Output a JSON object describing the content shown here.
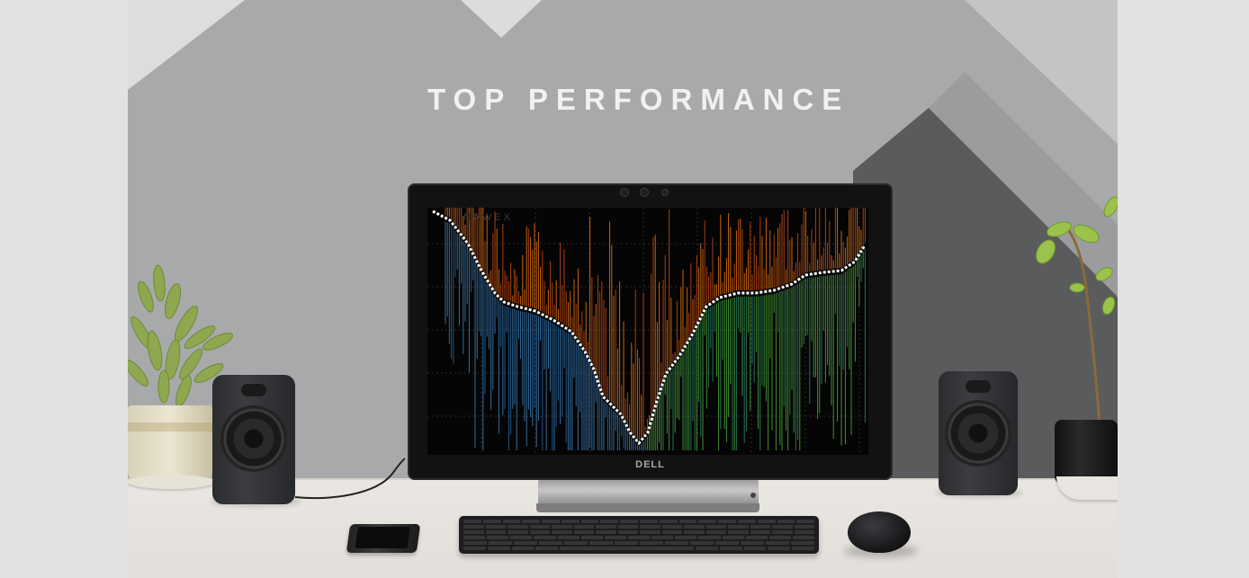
{
  "hero": {
    "headline": "TOP PERFORMANCE"
  },
  "monitor": {
    "brand_logo": "DELL",
    "screen_watermark": "NAWEX"
  },
  "icons": [
    "speaker-left-icon",
    "speaker-right-icon",
    "plant-icon",
    "keyboard-icon",
    "mouse-icon",
    "phone-icon"
  ],
  "colors": {
    "wall_light": "#a9aaab",
    "wall_dark": "#58595b",
    "headline": "#f1f1f1",
    "chart_orange": "#e8750f",
    "chart_blue": "#3d86c6",
    "chart_green": "#4fb43a",
    "chart_white": "#ffffff"
  }
}
